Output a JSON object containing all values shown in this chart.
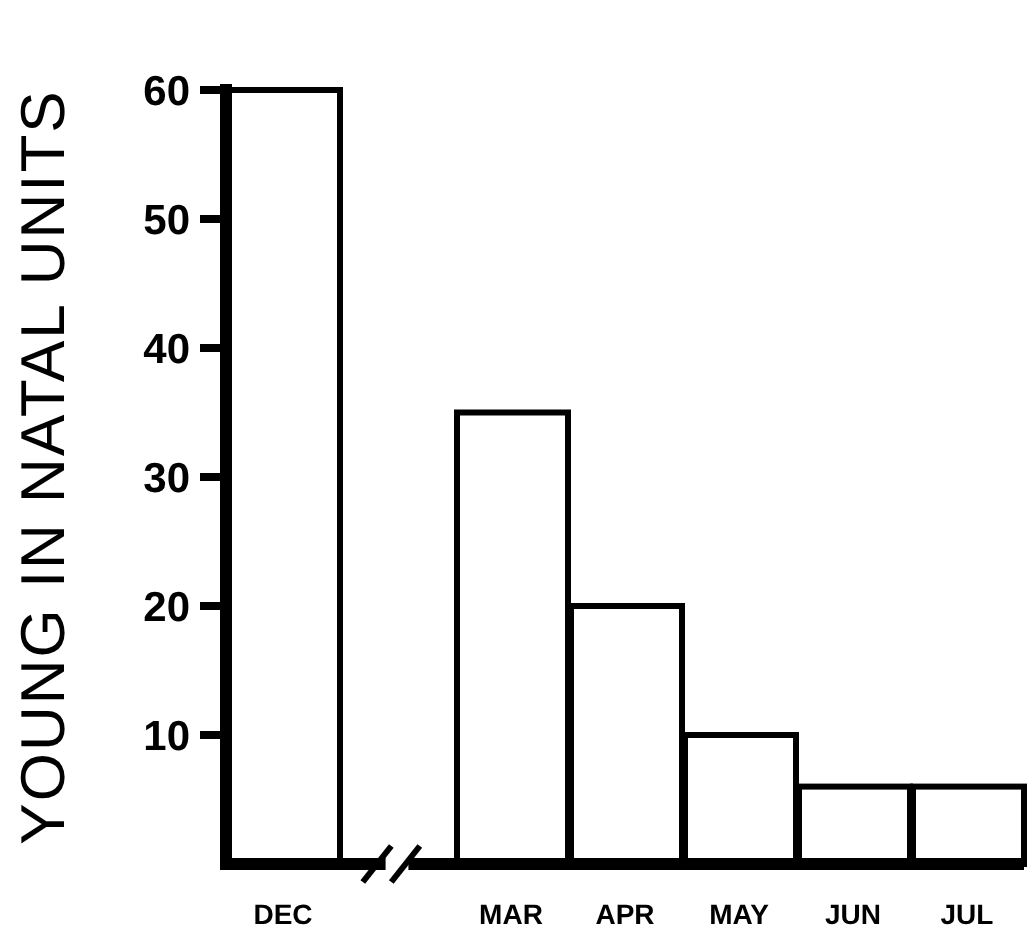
{
  "chart_data": {
    "type": "bar",
    "ylabel": "YOUNG IN NATAL UNITS",
    "categories": [
      "DEC",
      null,
      "MAR",
      "APR",
      "MAY",
      "JUN",
      "JUL"
    ],
    "values": [
      60,
      null,
      35,
      20,
      10,
      6,
      6
    ],
    "color": "#ffffff",
    "ylim": [
      0,
      60
    ],
    "yticks": [
      10,
      20,
      30,
      40,
      50,
      60
    ]
  }
}
